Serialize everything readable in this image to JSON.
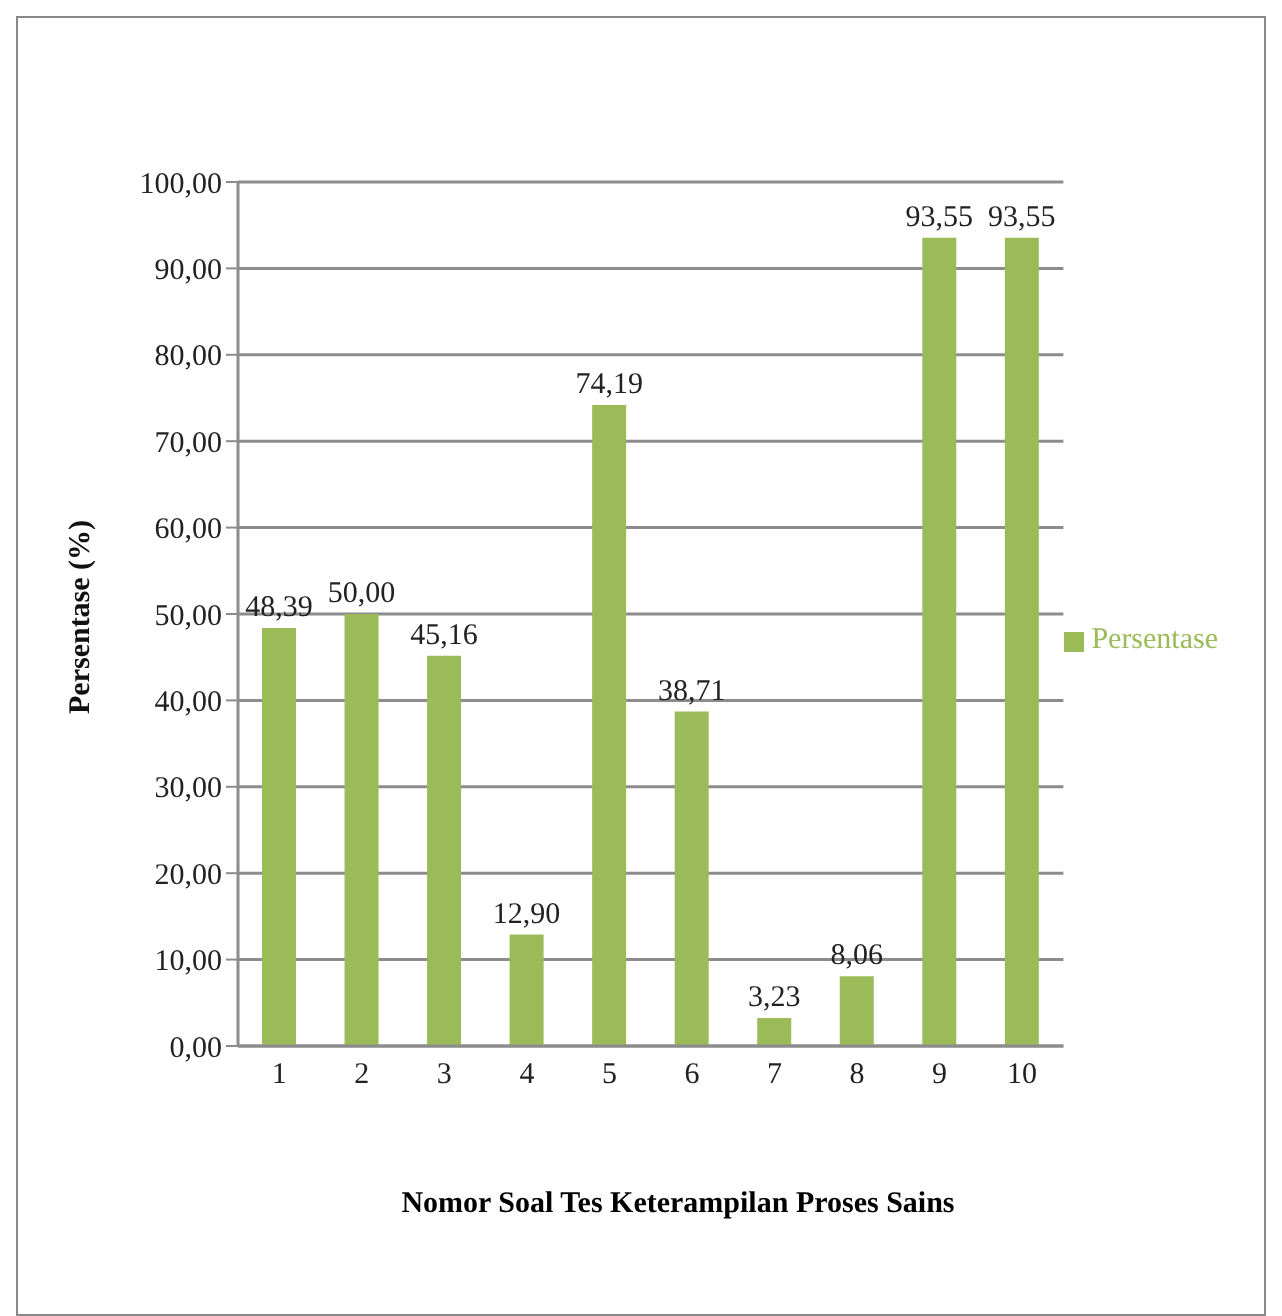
{
  "chart_data": {
    "type": "bar",
    "xlabel": "Nomor Soal Tes Keterampilan Proses Sains",
    "ylabel": "Persentase (%)",
    "categories": [
      "1",
      "2",
      "3",
      "4",
      "5",
      "6",
      "7",
      "8",
      "9",
      "10"
    ],
    "series": [
      {
        "name": "Persentase",
        "color": "#9bbb59",
        "values": [
          48.39,
          50.0,
          45.16,
          12.9,
          74.19,
          38.71,
          3.23,
          8.06,
          93.55,
          93.55
        ],
        "value_labels": [
          "48,39",
          "50,00",
          "45,16",
          "12,90",
          "74,19",
          "38,71",
          "3,23",
          "8,06",
          "93,55",
          "93,55"
        ]
      }
    ],
    "ylim": [
      0,
      100
    ],
    "yticks": [
      {
        "value": 0,
        "label": "0,00"
      },
      {
        "value": 10,
        "label": "10,00"
      },
      {
        "value": 20,
        "label": "20,00"
      },
      {
        "value": 30,
        "label": "30,00"
      },
      {
        "value": 40,
        "label": "40,00"
      },
      {
        "value": 50,
        "label": "50,00"
      },
      {
        "value": 60,
        "label": "60,00"
      },
      {
        "value": 70,
        "label": "70,00"
      },
      {
        "value": 80,
        "label": "80,00"
      },
      {
        "value": 90,
        "label": "90,00"
      },
      {
        "value": 100,
        "label": "100,00"
      }
    ],
    "grid": "y",
    "legend": "right"
  }
}
